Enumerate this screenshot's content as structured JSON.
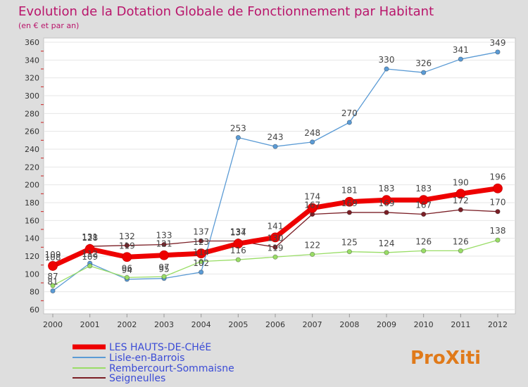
{
  "chart_data": {
    "type": "line",
    "title": "Evolution de la Dotation Globale de Fonctionnement par Habitant",
    "subtitle": "(en € et par an)",
    "xlabel": "",
    "ylabel": "",
    "x": [
      "2000",
      "2001",
      "2002",
      "2003",
      "2004",
      "2005",
      "2006",
      "2007",
      "2008",
      "2009",
      "2010",
      "2011",
      "2012"
    ],
    "ylim": [
      60,
      360
    ],
    "yticks": [
      60,
      80,
      100,
      120,
      140,
      160,
      180,
      200,
      220,
      240,
      260,
      280,
      300,
      320,
      340,
      360
    ],
    "grid": "horizontal",
    "legend_position": "bottom-left",
    "series": [
      {
        "name": "LES HAUTS-DE-CHéE",
        "color": "#ee0000",
        "style": "thick",
        "values": [
          109,
          128,
          119,
          121,
          123,
          134,
          141,
          174,
          181,
          183,
          183,
          190,
          196
        ],
        "labels": [
          "109",
          "128",
          "119",
          "121",
          "123",
          "134",
          "141",
          "174",
          "181",
          "183",
          "183",
          "190",
          "196"
        ]
      },
      {
        "name": "Lisle-en-Barrois",
        "color": "#5b9bd5",
        "style": "thin",
        "values": [
          81,
          112,
          94,
          95,
          102,
          253,
          243,
          248,
          270,
          330,
          326,
          341,
          349
        ],
        "labels": [
          "81",
          "112",
          "94",
          "95",
          "102",
          "253",
          "243",
          "248",
          "270",
          "330",
          "326",
          "341",
          "349"
        ]
      },
      {
        "name": "Rembercourt-Sommaisne",
        "color": "#99dd66",
        "style": "thin",
        "values": [
          87,
          109,
          96,
          97,
          114,
          116,
          119,
          122,
          125,
          124,
          126,
          126,
          138
        ],
        "labels": [
          "87",
          "109",
          "96",
          "97",
          "114",
          "116",
          "119",
          "122",
          "125",
          "124",
          "126",
          "126",
          "138"
        ]
      },
      {
        "name": "Seigneulles",
        "color": "#7b1f26",
        "style": "thin",
        "values": [
          108,
          131,
          132,
          133,
          137,
          137,
          130,
          167,
          169,
          169,
          167,
          172,
          170
        ],
        "labels": [
          "108",
          "131",
          "132",
          "133",
          "137",
          "137",
          "130",
          "167",
          "169",
          "169",
          "167",
          "172",
          "170"
        ]
      }
    ]
  },
  "logo": {
    "text": "ProXiti"
  }
}
